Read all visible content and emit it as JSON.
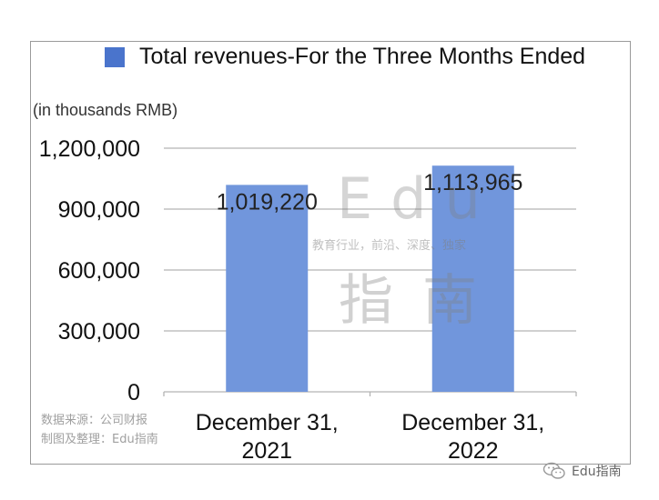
{
  "chart_data": {
    "type": "bar",
    "categories": [
      "December 31,\n2021",
      "December 31,\n2022"
    ],
    "series": [
      {
        "name": "Total revenues-For the Three Months Ended",
        "values": [
          1019220,
          1113965
        ]
      }
    ],
    "data_labels": [
      "1,019,220",
      "1,113,965"
    ],
    "y_ticks": [
      0,
      300000,
      600000,
      900000,
      1200000
    ],
    "y_tick_labels": [
      "0",
      "300,000",
      "600,000",
      "900,000",
      "1,200,000"
    ],
    "ylim": [
      0,
      1200000
    ],
    "ylabel": "(in thousands RMB)",
    "xlabel": "",
    "grid": true,
    "legend_position": "top",
    "colors": {
      "bar": "#7196dc",
      "legend_swatch": "#4a74cc",
      "grid": "#b3b3b3"
    }
  },
  "watermark": {
    "latin": "Edu",
    "subtitle": "教育行业，前沿、深度、独家",
    "chinese": "指南"
  },
  "source": {
    "line1": "数据来源：公司财报",
    "line2": "制图及整理：Edu指南"
  },
  "brand": {
    "icon": "wechat-icon",
    "text": "Edu指南"
  }
}
